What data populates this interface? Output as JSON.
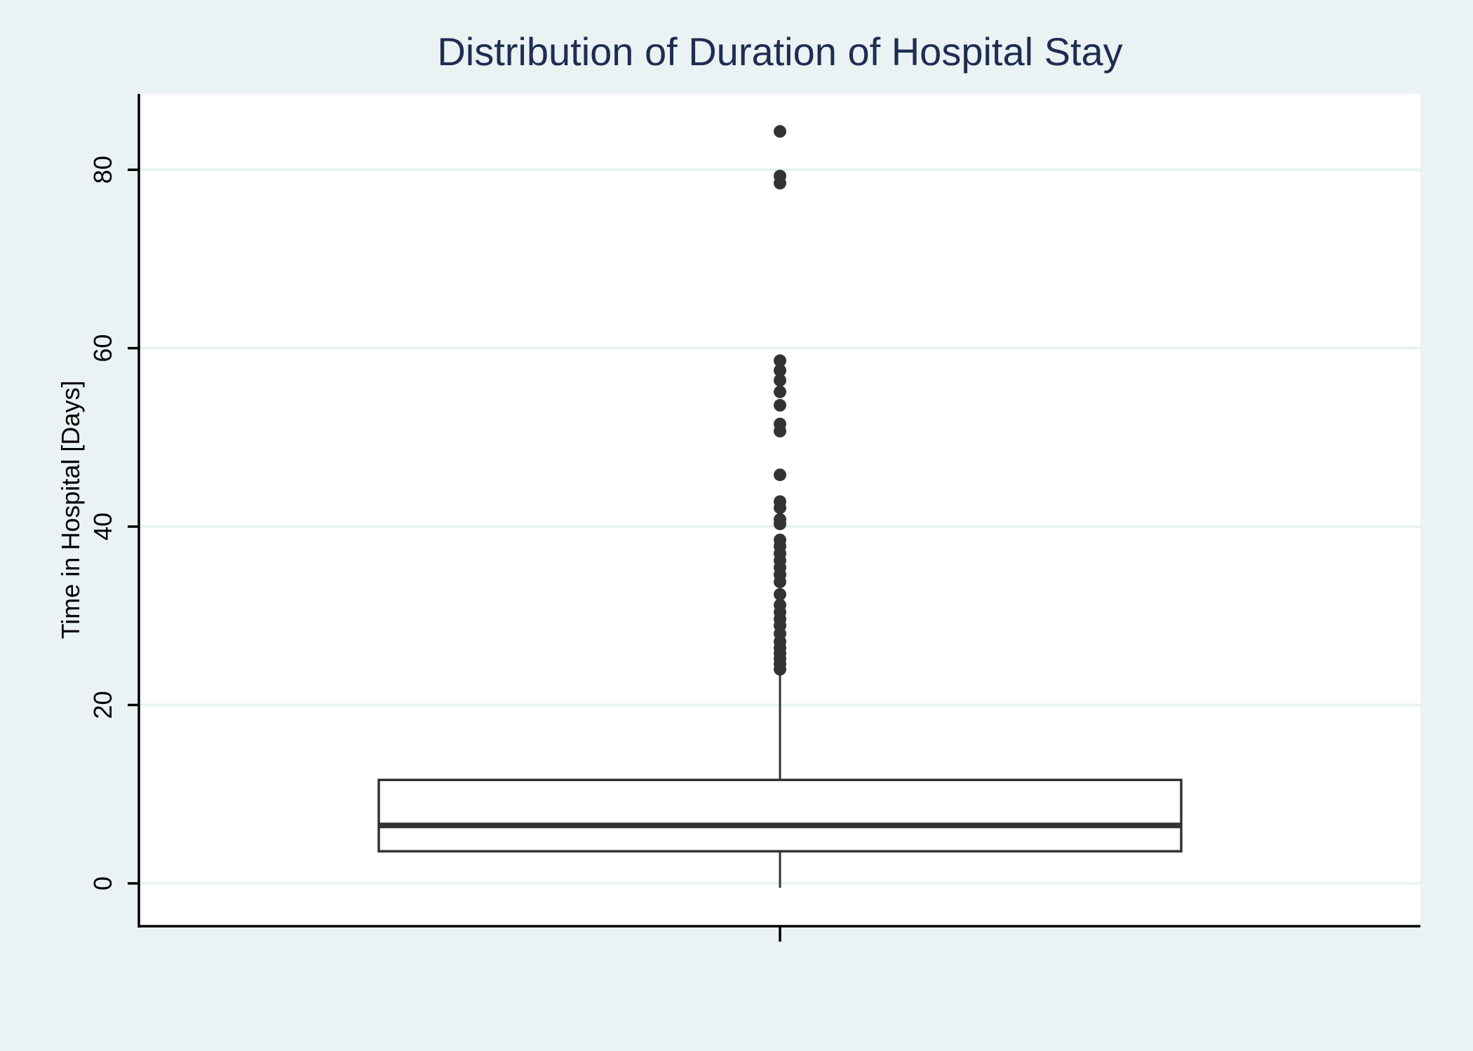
{
  "colors": {
    "page_background": "#eaf2f3",
    "plot_background": "#ffffff",
    "gridline": "#eaf2f3",
    "title": "#1e2d52",
    "box_stroke": "#333333",
    "outlier_fill": "#333333",
    "axis": "#000000"
  },
  "chart_data": {
    "type": "box",
    "title": "Distribution of Duration of Hospital Stay",
    "xlabel": "",
    "ylabel": "Time in Hospital [Days]",
    "ylim": [
      -4.8,
      88.5
    ],
    "yticks": [
      0,
      20,
      40,
      60,
      80
    ],
    "grid": true,
    "box": {
      "whisker_low": -0.5,
      "q1": 3.6,
      "median": 6.5,
      "q3": 11.6,
      "whisker_high": 23.5
    },
    "outliers": [
      24.0,
      24.6,
      25.2,
      25.8,
      26.4,
      27.1,
      28.0,
      28.9,
      29.6,
      30.4,
      31.2,
      32.4,
      33.8,
      34.6,
      35.4,
      36.2,
      37.0,
      37.8,
      38.5,
      40.3,
      40.8,
      42.1,
      42.8,
      45.8,
      50.7,
      51.5,
      53.6,
      55.1,
      56.4,
      57.5,
      58.6,
      78.5,
      79.3,
      84.3
    ]
  }
}
